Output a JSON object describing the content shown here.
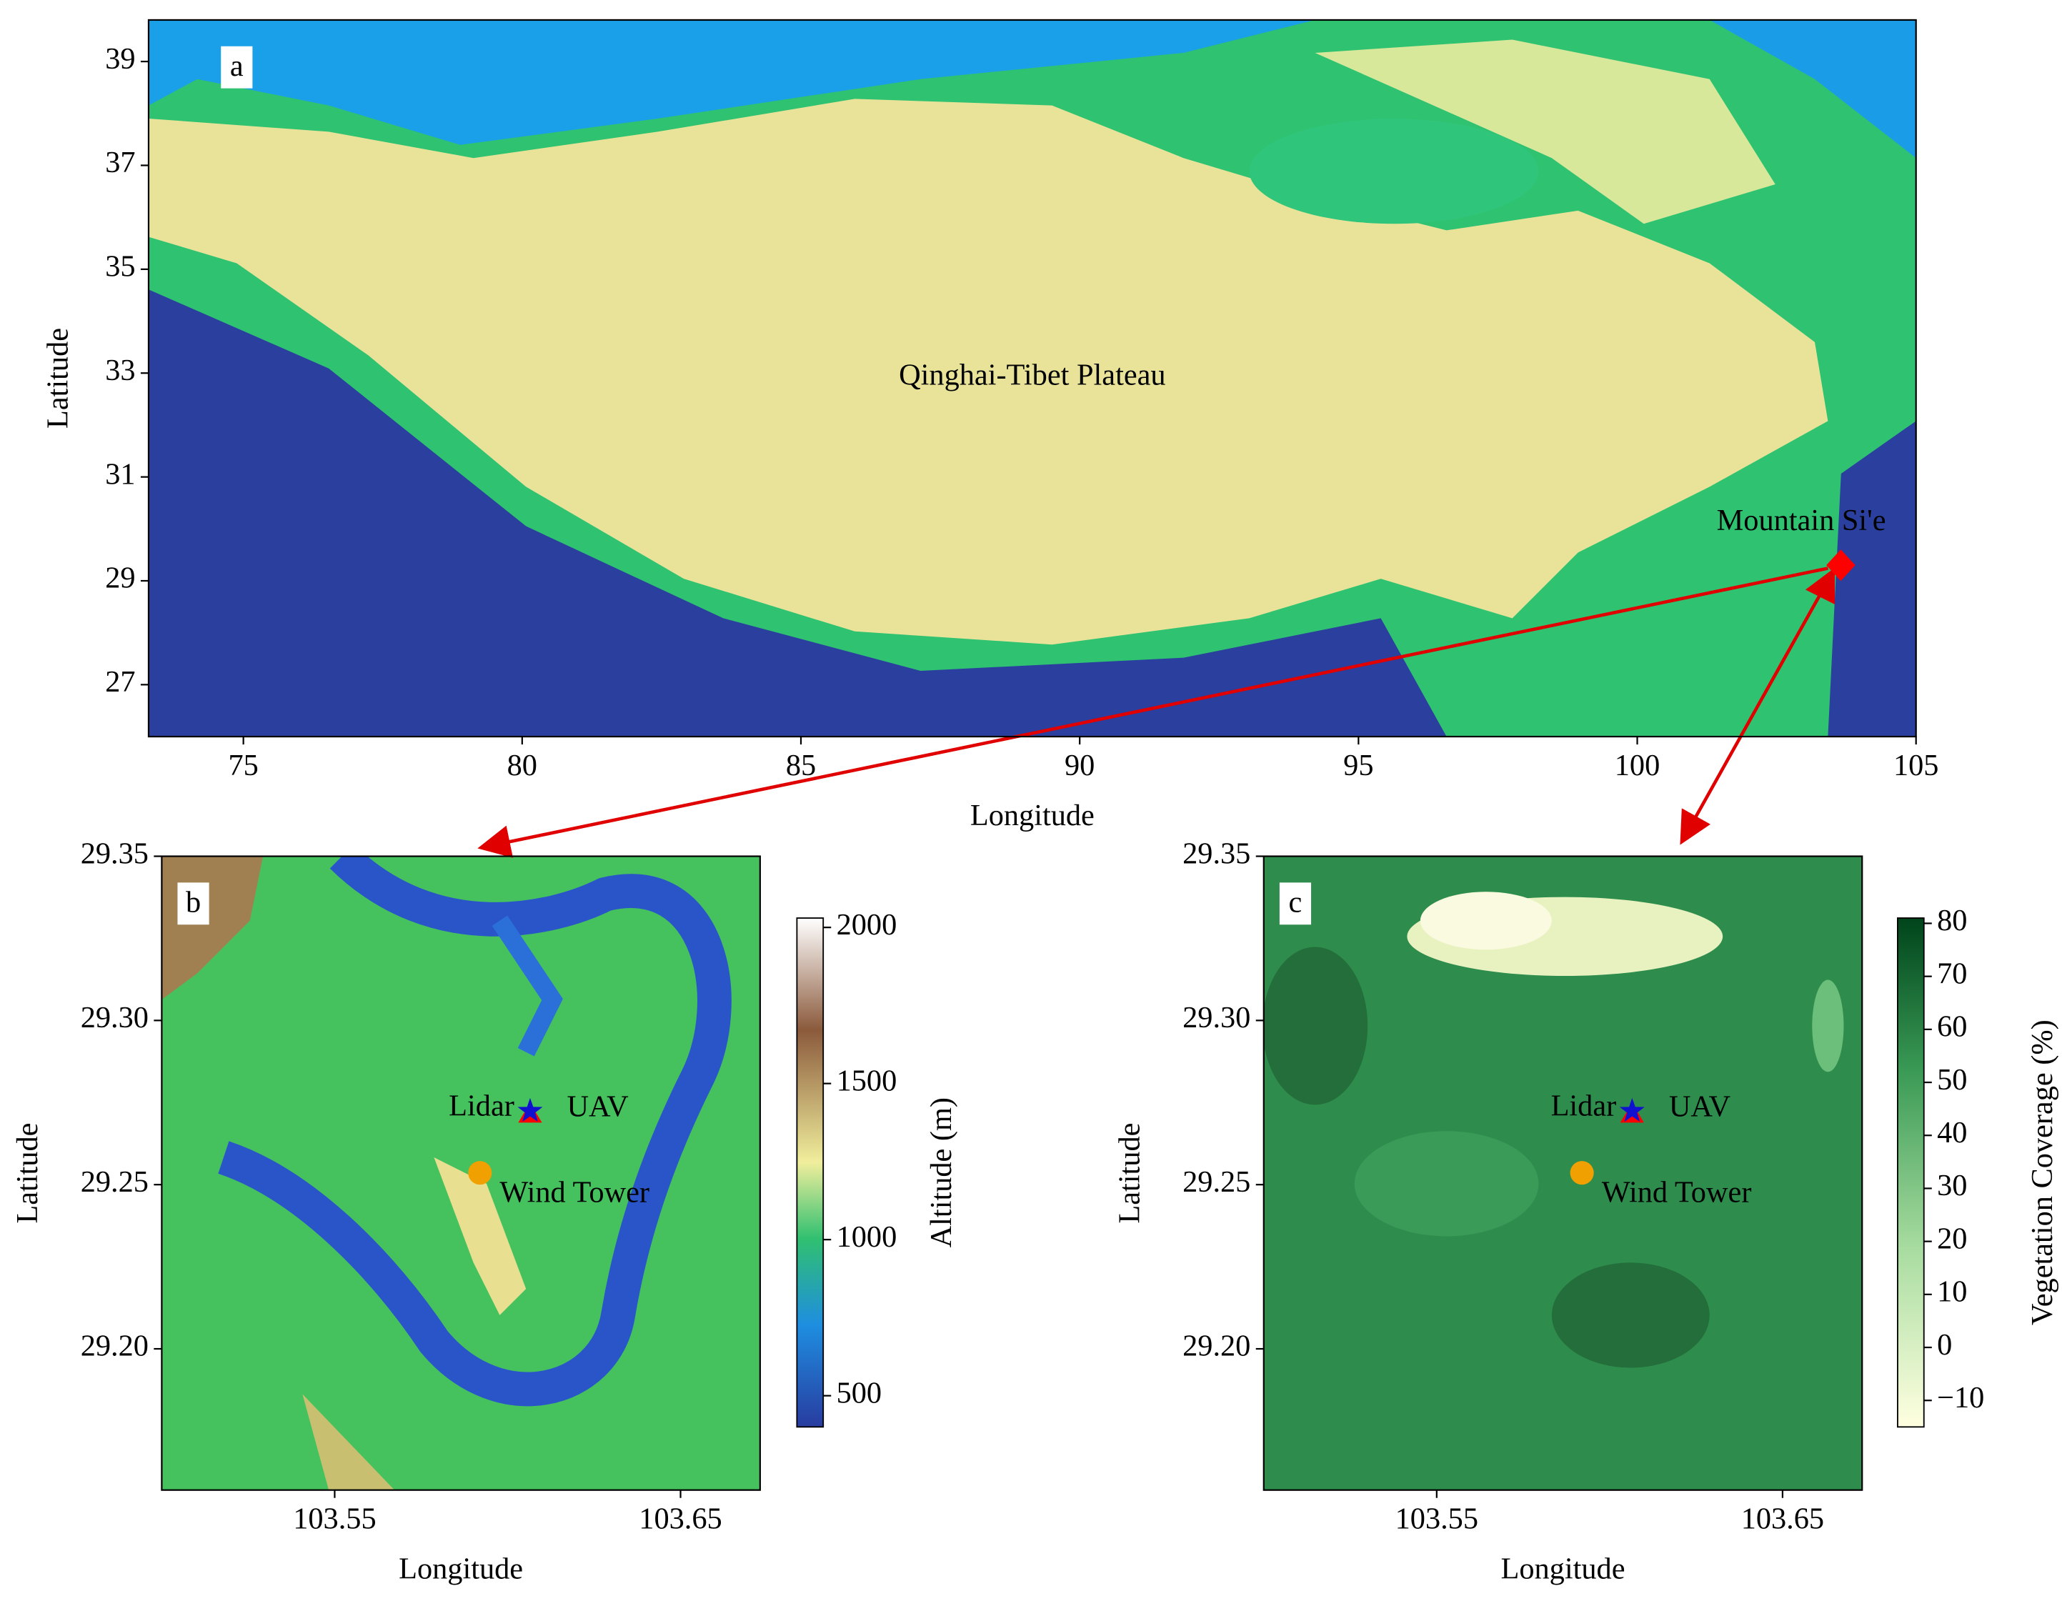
{
  "panels": [
    {
      "label": "a",
      "xlabel": "Longitude",
      "ylabel": "Latitude",
      "xlim": [
        73.3,
        105
      ],
      "ylim": [
        26,
        39.8
      ],
      "xticks": [
        75,
        80,
        85,
        90,
        95,
        100,
        105
      ],
      "yticks": [
        27,
        29,
        31,
        33,
        35,
        37,
        39
      ],
      "annotation": "Qinghai-Tibet Plateau",
      "sites": [
        {
          "name": "Mountain Si'e",
          "lon": 103.65,
          "lat": 29.3,
          "marker": "diamond",
          "color": "#ff0000"
        }
      ]
    },
    {
      "label": "b",
      "xlabel": "Longitude",
      "ylabel": "Latitude",
      "xlim": [
        103.5,
        103.673
      ],
      "ylim": [
        29.157,
        29.35
      ],
      "xticks": [
        103.55,
        103.65
      ],
      "yticks": [
        {
          "value": 29.2,
          "label": "29.20"
        },
        29.25,
        {
          "value": 29.3,
          "label": "29.30"
        },
        29.35
      ],
      "colorbar": {
        "label": "Altitude (m)",
        "lim": [
          400,
          2030
        ],
        "ticks": [
          500,
          1000,
          1500,
          2000
        ]
      },
      "sites": [
        {
          "name": "Lidar",
          "lon": 103.6065,
          "lat": 29.2724,
          "marker": "star",
          "color": "#1010d0"
        },
        {
          "name": "UAV",
          "lon": 103.6065,
          "lat": 29.2713,
          "marker": "triangle",
          "color": "#ff0000"
        },
        {
          "name": "Wind Tower",
          "lon": 103.592,
          "lat": 29.2536,
          "marker": "circle",
          "color": "#f0a000"
        }
      ]
    },
    {
      "label": "c",
      "xlabel": "Longitude",
      "ylabel": "Latitude",
      "xlim": [
        103.5,
        103.673
      ],
      "ylim": [
        29.157,
        29.35
      ],
      "xticks": [
        103.55,
        103.65
      ],
      "yticks": [
        {
          "value": 29.2,
          "label": "29.20"
        },
        29.25,
        {
          "value": 29.3,
          "label": "29.30"
        },
        29.35
      ],
      "colorbar": {
        "label": "Vegetation Coverage (%)",
        "lim": [
          -15,
          81
        ],
        "ticks": [
          {
            "value": -10,
            "label": "−10"
          },
          0,
          10,
          20,
          30,
          40,
          50,
          60,
          70,
          80
        ]
      },
      "sites": [
        {
          "name": "Lidar",
          "lon": 103.6065,
          "lat": 29.2724,
          "marker": "star",
          "color": "#1010d0"
        },
        {
          "name": "UAV",
          "lon": 103.6065,
          "lat": 29.2713,
          "marker": "triangle",
          "color": "#ff0000"
        },
        {
          "name": "Wind Tower",
          "lon": 103.592,
          "lat": 29.2536,
          "marker": "circle",
          "color": "#f0a000"
        }
      ]
    }
  ]
}
